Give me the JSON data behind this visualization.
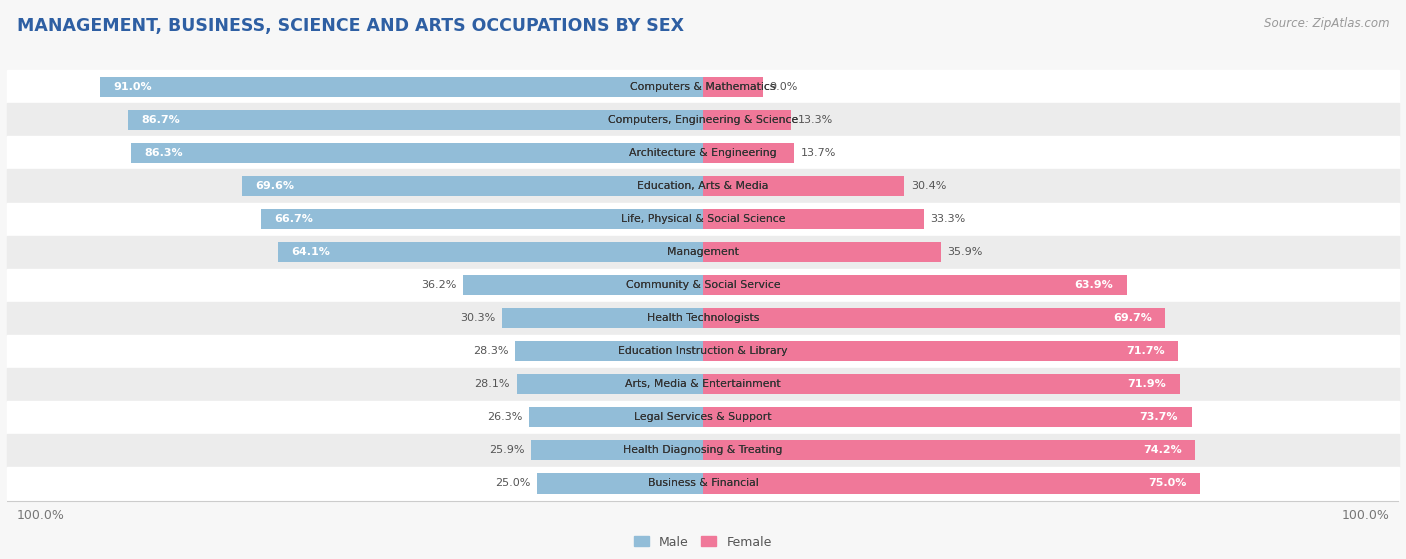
{
  "title": "MANAGEMENT, BUSINESS, SCIENCE AND ARTS OCCUPATIONS BY SEX",
  "source": "Source: ZipAtlas.com",
  "categories": [
    "Computers & Mathematics",
    "Computers, Engineering & Science",
    "Architecture & Engineering",
    "Education, Arts & Media",
    "Life, Physical & Social Science",
    "Management",
    "Community & Social Service",
    "Health Technologists",
    "Education Instruction & Library",
    "Arts, Media & Entertainment",
    "Legal Services & Support",
    "Health Diagnosing & Treating",
    "Business & Financial"
  ],
  "male_pct": [
    91.0,
    86.7,
    86.3,
    69.6,
    66.7,
    64.1,
    36.2,
    30.3,
    28.3,
    28.1,
    26.3,
    25.9,
    25.0
  ],
  "female_pct": [
    9.0,
    13.3,
    13.7,
    30.4,
    33.3,
    35.9,
    63.9,
    69.7,
    71.7,
    71.9,
    73.7,
    74.2,
    75.0
  ],
  "male_color": "#92bdd8",
  "female_color": "#f07899",
  "bg_color": "#f7f7f7",
  "row_bg_even": "#ffffff",
  "row_bg_odd": "#ececec",
  "title_color": "#2e5fa3",
  "source_color": "#999999",
  "text_white": "#ffffff",
  "text_dark": "#555555",
  "axis_label_color": "#777777",
  "legend_label_color": "#555555"
}
